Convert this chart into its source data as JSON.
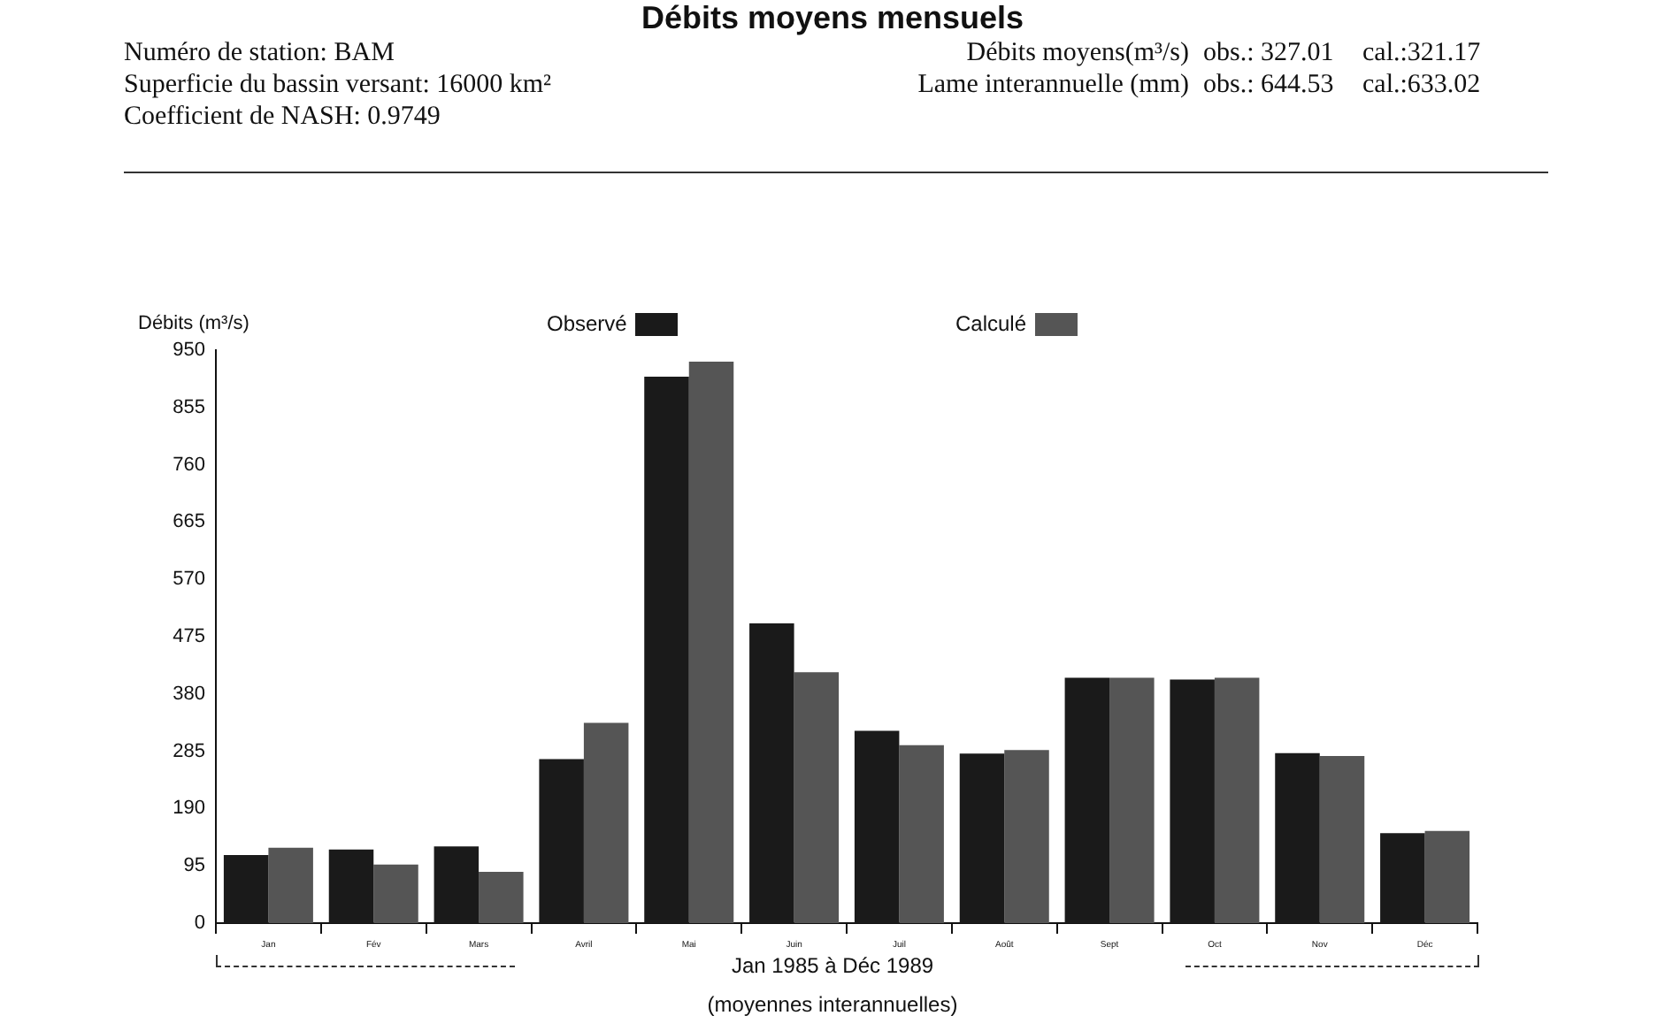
{
  "chart_data": {
    "type": "bar",
    "title": "Débits moyens mensuels",
    "annotations": [
      "Numéro de station: BAM",
      "Superficie du bassin versant: 16000 km²",
      "Coefficient de NASH: 0.9749",
      "Débits moyens(m³/s)",
      "obs.: 327.01",
      "cal.:321.17",
      "Lame interannuelle (mm)",
      "obs.: 644.53",
      "cal.:633.02",
      "(moyennes interannuelles)"
    ],
    "xlabel": "Jan 1985 à Déc 1989",
    "ylabel": "Débits (m³/s)",
    "categories": [
      "Jan",
      "Fév",
      "Mars",
      "Avril",
      "Mai",
      "Juin",
      "Juil",
      "Août",
      "Sept",
      "Oct",
      "Nov",
      "Déc"
    ],
    "series": [
      {
        "name": "Observé",
        "color": "#1a1a1a",
        "values": [
          113,
          122,
          127,
          272,
          906,
          497,
          319,
          281,
          407,
          404,
          282,
          149
        ]
      },
      {
        "name": "Calculé",
        "color": "#555555",
        "values": [
          125,
          97,
          85,
          332,
          931,
          416,
          295,
          287,
          407,
          407,
          277,
          153
        ]
      }
    ],
    "ylim": [
      0,
      950
    ],
    "yticks": [
      0,
      95,
      190,
      285,
      380,
      475,
      570,
      665,
      760,
      855,
      950
    ],
    "legend": "top"
  }
}
